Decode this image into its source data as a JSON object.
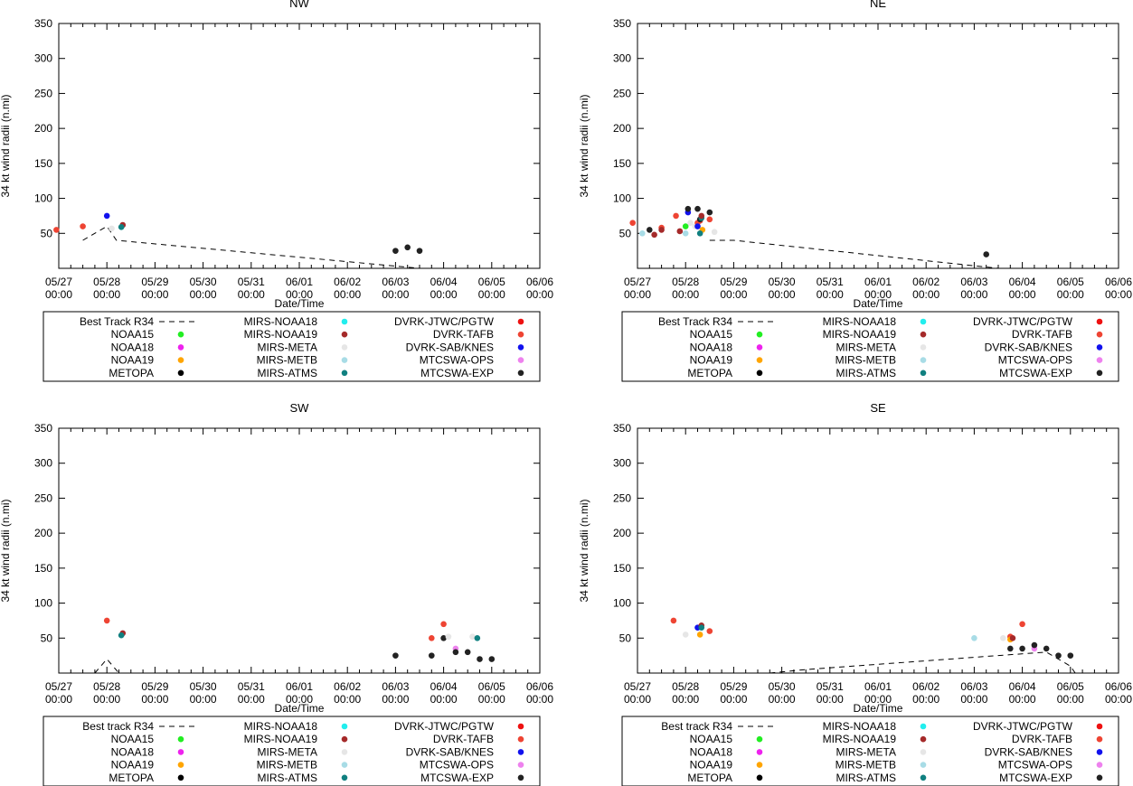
{
  "figure": {
    "xlabel": "Date/Time",
    "ylabel": "34 kt wind radii (n.mi)",
    "x_tick_dates": [
      "05/27",
      "05/28",
      "05/29",
      "05/30",
      "05/31",
      "06/01",
      "06/02",
      "06/03",
      "06/04",
      "06/05",
      "06/06"
    ],
    "x_tick_time": "00:00",
    "y_ticks": [
      50,
      100,
      150,
      200,
      250,
      300,
      350
    ]
  },
  "colors": {
    "NOAA15": "#22ee22",
    "NOAA18": "#ee22ee",
    "NOAA19": "#ffa500",
    "METOPA": "#000000",
    "MIRS-NOAA18": "#22eeee",
    "MIRS-NOAA19": "#a52a2a",
    "MIRS-META": "#e6e6e6",
    "MIRS-METB": "#a8dce6",
    "MIRS-ATMS": "#108080",
    "DVRK-JTWC/PGTW": "#ee1111",
    "DVRK-TAFB": "#ee4433",
    "DVRK-SAB/KNES": "#1111ee",
    "MTCSWA-OPS": "#ee82ee",
    "MTCSWA-EXP": "#222222"
  },
  "legends": {
    "nw": [
      [
        "Best Track R34",
        "MIRS-NOAA18",
        "DVRK-JTWC/PGTW"
      ],
      [
        "NOAA15",
        "MIRS-NOAA19",
        "DVRK-TAFB"
      ],
      [
        "NOAA18",
        "MIRS-META",
        "DVRK-SAB/KNES"
      ],
      [
        "NOAA19",
        "MIRS-METB",
        "MTCSWA-OPS"
      ],
      [
        "METOPA",
        "MIRS-ATMS",
        "MTCSWA-EXP"
      ]
    ],
    "ne": [
      [
        "Best Track R34",
        "MIRS-NOAA18",
        "DVRK-JTWC/PGTW"
      ],
      [
        "NOAA15",
        "MIRS-NOAA19",
        "DVRK-TAFB"
      ],
      [
        "NOAA18",
        "MIRS-META",
        "DVRK-SAB/KNES"
      ],
      [
        "NOAA19",
        "MIRS-METB",
        "MTCSWA-OPS"
      ],
      [
        "METOPA",
        "MIRS-ATMS",
        "MTCSWA-EXP"
      ]
    ],
    "sw": [
      [
        "Best track R34",
        "MIRS-NOAA18",
        "DVRK-JTWC/PGTW"
      ],
      [
        "NOAA15",
        "MIRS-NOAA19",
        "DVRK-TAFB"
      ],
      [
        "NOAA18",
        "MIRS-META",
        "DVRK-SAB/KNES"
      ],
      [
        "NOAA19",
        "MIRS-METB",
        "MTCSWA-OPS"
      ],
      [
        "METOPA",
        "MIRS-ATMS",
        "MTCSWA-EXP"
      ]
    ],
    "se": [
      [
        "Best track R34",
        "MIRS-NOAA18",
        "DVRK-JTWC/PGTW"
      ],
      [
        "NOAA15",
        "MIRS-NOAA19",
        "DVRK-TAFB"
      ],
      [
        "NOAA18",
        "MIRS-META",
        "DVRK-SAB/KNES"
      ],
      [
        "NOAA19",
        "MIRS-METB",
        "MTCSWA-OPS"
      ],
      [
        "METOPA",
        "MIRS-ATMS",
        "MTCSWA-EXP"
      ]
    ]
  },
  "chart_data": [
    {
      "id": "nw",
      "type": "scatter",
      "title": "NW",
      "xlabel": "Date/Time",
      "ylabel": "34 kt wind radii (n.mi)",
      "xlim": [
        0,
        10
      ],
      "ylim": [
        0,
        350
      ],
      "best_track": [
        [
          0.5,
          40
        ],
        [
          1.0,
          60
        ],
        [
          1.2,
          40
        ],
        [
          7.5,
          0
        ]
      ],
      "points": [
        {
          "source": "DVRK-TAFB",
          "x": -0.05,
          "y": 55
        },
        {
          "source": "DVRK-TAFB",
          "x": 0.5,
          "y": 60
        },
        {
          "source": "DVRK-SAB/KNES",
          "x": 1.0,
          "y": 75
        },
        {
          "source": "MIRS-META",
          "x": 1.1,
          "y": 57
        },
        {
          "source": "MIRS-NOAA19",
          "x": 1.33,
          "y": 62
        },
        {
          "source": "MIRS-ATMS",
          "x": 1.3,
          "y": 59
        },
        {
          "source": "MTCSWA-EXP",
          "x": 7.0,
          "y": 25
        },
        {
          "source": "MTCSWA-EXP",
          "x": 7.25,
          "y": 30
        },
        {
          "source": "MTCSWA-EXP",
          "x": 7.5,
          "y": 25
        }
      ]
    },
    {
      "id": "ne",
      "type": "scatter",
      "title": "NE",
      "xlabel": "Date/Time",
      "ylabel": "34 kt wind radii (n.mi)",
      "xlim": [
        0,
        10
      ],
      "ylim": [
        0,
        350
      ],
      "best_track": [
        [
          1.5,
          40
        ],
        [
          2.0,
          40
        ],
        [
          7.5,
          0
        ]
      ],
      "points": [
        {
          "source": "DVRK-TAFB",
          "x": -0.1,
          "y": 65
        },
        {
          "source": "MIRS-METB",
          "x": 0.1,
          "y": 50
        },
        {
          "source": "MTCSWA-EXP",
          "x": 0.25,
          "y": 55
        },
        {
          "source": "MIRS-NOAA19",
          "x": 0.35,
          "y": 48
        },
        {
          "source": "DVRK-TAFB",
          "x": 0.5,
          "y": 58
        },
        {
          "source": "MIRS-NOAA19",
          "x": 0.5,
          "y": 55
        },
        {
          "source": "DVRK-TAFB",
          "x": 0.8,
          "y": 75
        },
        {
          "source": "MIRS-NOAA19",
          "x": 0.88,
          "y": 53
        },
        {
          "source": "NOAA15",
          "x": 1.0,
          "y": 60
        },
        {
          "source": "MIRS-METB",
          "x": 1.0,
          "y": 50
        },
        {
          "source": "DVRK-SAB/KNES",
          "x": 1.05,
          "y": 80
        },
        {
          "source": "MTCSWA-EXP",
          "x": 1.05,
          "y": 85
        },
        {
          "source": "MIRS-META",
          "x": 1.1,
          "y": 65
        },
        {
          "source": "MIRS-META",
          "x": 1.2,
          "y": 60
        },
        {
          "source": "DVRK-TAFB",
          "x": 1.25,
          "y": 65
        },
        {
          "source": "MTCSWA-EXP",
          "x": 1.25,
          "y": 85
        },
        {
          "source": "DVRK-SAB/KNES",
          "x": 1.25,
          "y": 60
        },
        {
          "source": "DVRK-TAFB",
          "x": 1.3,
          "y": 68
        },
        {
          "source": "MTCSWA-EXP",
          "x": 1.3,
          "y": 70
        },
        {
          "source": "MIRS-ATMS",
          "x": 1.33,
          "y": 72
        },
        {
          "source": "MIRS-NOAA19",
          "x": 1.33,
          "y": 75
        },
        {
          "source": "NOAA19",
          "x": 1.35,
          "y": 55
        },
        {
          "source": "MIRS-ATMS",
          "x": 1.3,
          "y": 50
        },
        {
          "source": "DVRK-TAFB",
          "x": 1.5,
          "y": 70
        },
        {
          "source": "MTCSWA-EXP",
          "x": 1.5,
          "y": 80
        },
        {
          "source": "MIRS-META",
          "x": 1.6,
          "y": 52
        },
        {
          "source": "MTCSWA-EXP",
          "x": 7.25,
          "y": 20
        }
      ]
    },
    {
      "id": "sw",
      "type": "scatter",
      "title": "SW",
      "xlabel": "Date/Time",
      "ylabel": "34 kt wind radii (n.mi)",
      "xlim": [
        0,
        10
      ],
      "ylim": [
        0,
        350
      ],
      "best_track": [
        [
          0.75,
          0
        ],
        [
          1.0,
          20
        ],
        [
          1.25,
          0
        ]
      ],
      "points": [
        {
          "source": "DVRK-TAFB",
          "x": 1.0,
          "y": 75
        },
        {
          "source": "MIRS-NOAA19",
          "x": 1.33,
          "y": 57
        },
        {
          "source": "MIRS-ATMS",
          "x": 1.3,
          "y": 54
        },
        {
          "source": "MTCSWA-EXP",
          "x": 7.0,
          "y": 25
        },
        {
          "source": "DVRK-TAFB",
          "x": 7.75,
          "y": 50
        },
        {
          "source": "MTCSWA-EXP",
          "x": 7.75,
          "y": 25
        },
        {
          "source": "DVRK-TAFB",
          "x": 8.0,
          "y": 70
        },
        {
          "source": "MTCSWA-EXP",
          "x": 8.0,
          "y": 50
        },
        {
          "source": "MIRS-META",
          "x": 8.1,
          "y": 52
        },
        {
          "source": "MTCSWA-OPS",
          "x": 8.25,
          "y": 35
        },
        {
          "source": "MTCSWA-EXP",
          "x": 8.25,
          "y": 30
        },
        {
          "source": "MTCSWA-EXP",
          "x": 8.5,
          "y": 30
        },
        {
          "source": "MIRS-META",
          "x": 8.6,
          "y": 52
        },
        {
          "source": "MIRS-ATMS",
          "x": 8.7,
          "y": 50
        },
        {
          "source": "MTCSWA-EXP",
          "x": 8.75,
          "y": 20
        },
        {
          "source": "MTCSWA-EXP",
          "x": 9.0,
          "y": 20
        }
      ]
    },
    {
      "id": "se",
      "type": "scatter",
      "title": "SE",
      "xlabel": "Date/Time",
      "ylabel": "34 kt wind radii (n.mi)",
      "xlim": [
        0,
        10
      ],
      "ylim": [
        0,
        350
      ],
      "best_track": [
        [
          2.75,
          0
        ],
        [
          3.5,
          5
        ],
        [
          7.5,
          25
        ],
        [
          8.5,
          30
        ],
        [
          9.0,
          10
        ],
        [
          9.1,
          0
        ]
      ],
      "points": [
        {
          "source": "DVRK-TAFB",
          "x": 0.75,
          "y": 75
        },
        {
          "source": "MIRS-META",
          "x": 1.0,
          "y": 55
        },
        {
          "source": "DVRK-SAB/KNES",
          "x": 1.25,
          "y": 65
        },
        {
          "source": "MIRS-NOAA19",
          "x": 1.33,
          "y": 68
        },
        {
          "source": "MIRS-ATMS",
          "x": 1.33,
          "y": 65
        },
        {
          "source": "NOAA19",
          "x": 1.3,
          "y": 55
        },
        {
          "source": "DVRK-TAFB",
          "x": 1.5,
          "y": 60
        },
        {
          "source": "MIRS-METB",
          "x": 7.0,
          "y": 50
        },
        {
          "source": "MIRS-META",
          "x": 7.6,
          "y": 50
        },
        {
          "source": "DVRK-TAFB",
          "x": 7.75,
          "y": 52
        },
        {
          "source": "NOAA19",
          "x": 7.75,
          "y": 48
        },
        {
          "source": "MIRS-NOAA19",
          "x": 7.8,
          "y": 50
        },
        {
          "source": "MTCSWA-EXP",
          "x": 7.75,
          "y": 35
        },
        {
          "source": "DVRK-TAFB",
          "x": 8.0,
          "y": 70
        },
        {
          "source": "MTCSWA-EXP",
          "x": 8.0,
          "y": 35
        },
        {
          "source": "MTCSWA-OPS",
          "x": 8.25,
          "y": 35
        },
        {
          "source": "MTCSWA-EXP",
          "x": 8.25,
          "y": 40
        },
        {
          "source": "MTCSWA-EXP",
          "x": 8.5,
          "y": 35
        },
        {
          "source": "MTCSWA-EXP",
          "x": 8.75,
          "y": 25
        },
        {
          "source": "MTCSWA-EXP",
          "x": 9.0,
          "y": 25
        }
      ]
    }
  ]
}
